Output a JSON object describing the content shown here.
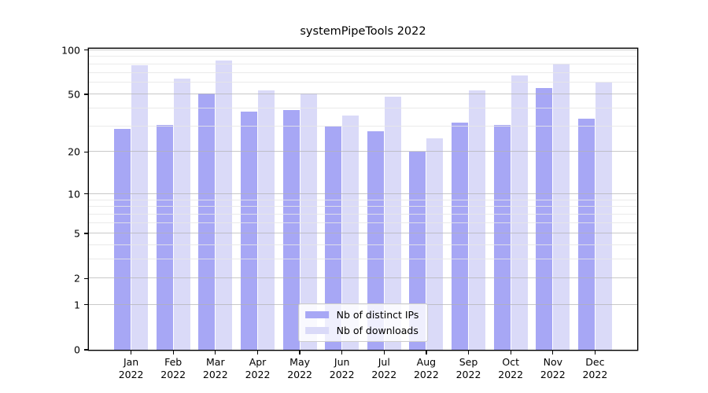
{
  "title": "systemPipeTools 2022",
  "chart_data": {
    "type": "bar",
    "title": "systemPipeTools 2022",
    "categories": [
      "Jan",
      "Feb",
      "Mar",
      "Apr",
      "May",
      "Jun",
      "Jul",
      "Aug",
      "Sep",
      "Oct",
      "Nov",
      "Dec"
    ],
    "category_year": "2022",
    "series": [
      {
        "name": "Nb of distinct IPs",
        "color": "#a7a7f5",
        "values": [
          29,
          31,
          51,
          38,
          39,
          30,
          28,
          20,
          32,
          31,
          55,
          34
        ]
      },
      {
        "name": "Nb of downloads",
        "color": "#dadaf8",
        "values": [
          79,
          64,
          85,
          53,
          51,
          36,
          48,
          25,
          53,
          67,
          81,
          60
        ]
      }
    ],
    "yscale": "log1p",
    "ylim": [
      0,
      102
    ],
    "yticks": [
      0,
      1,
      2,
      5,
      10,
      20,
      50,
      100
    ],
    "yticks_minor": [
      3,
      4,
      6,
      7,
      8,
      9,
      30,
      40,
      60,
      70,
      80,
      90
    ],
    "grid": true,
    "legend": {
      "position": "lower center",
      "items": [
        "Nb of distinct IPs",
        "Nb of downloads"
      ]
    }
  },
  "colors": {
    "background": "#ffffff",
    "spine": "#000000",
    "text": "#000000",
    "major_grid": "#c9c9c9",
    "minor_grid": "#ececec",
    "bar_ips": "#a7a7f5",
    "bar_downloads": "#dadaf8"
  }
}
